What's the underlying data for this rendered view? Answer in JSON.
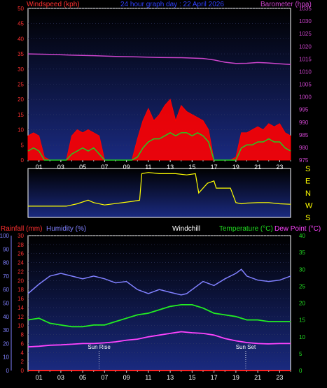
{
  "header": {
    "windspeed_label": "Windspeed (kph)",
    "title": "24 hour graph day : 22 April 2026",
    "barometer_label": "Barometer (hpa)"
  },
  "mid_header": {
    "rainfall_label": "Rainfall (mm)",
    "humidity_label": "Humidity (%)",
    "windchill_label": "Windchill",
    "temperature_label": "Temperature (°C)",
    "dewpoint_label": "Dew Point (°C)"
  },
  "colors": {
    "plot_bg_top": "#000000",
    "plot_bg_bottom": "#1a2a80",
    "wind_gust": "#ff0000",
    "wind_avg": "#22cc22",
    "barometer": "#cc44cc",
    "rain": "#ff2020",
    "humidity": "#8080ff",
    "temperature": "#22ee22",
    "dewpoint": "#ff44ff",
    "direction": "#ffff00",
    "axis_left": "#ff3030",
    "axis_right": "#cc44cc",
    "axis_hum": "#8080ff",
    "axis_temp": "#22dd22"
  },
  "chart_data": [
    {
      "type": "line",
      "name": "wind-barometer",
      "title": "24 hour graph day : 22 April 2026",
      "x_ticks": [
        "01",
        "03",
        "05",
        "07",
        "09",
        "11",
        "13",
        "15",
        "17",
        "19",
        "21",
        "23"
      ],
      "xlim": [
        0,
        24
      ],
      "ylabel_left": "Windspeed (kph)",
      "ylim_left": [
        0,
        50
      ],
      "yticks_left": [
        0,
        5,
        10,
        15,
        20,
        25,
        30,
        35,
        40,
        45,
        50
      ],
      "ylabel_right": "Barometer (hpa)",
      "ylim_right": [
        975,
        1035
      ],
      "yticks_right": [
        975,
        980,
        985,
        990,
        995,
        1000,
        1005,
        1010,
        1015,
        1020,
        1025,
        1030,
        1035
      ],
      "series": [
        {
          "key": "barometer",
          "axis": "right",
          "x": [
            0,
            2,
            4,
            6,
            8,
            10,
            12,
            14,
            16,
            17,
            18,
            19,
            20,
            21,
            22,
            23,
            24
          ],
          "y": [
            1017,
            1016.8,
            1016.5,
            1016.3,
            1016,
            1015.8,
            1015.6,
            1015.5,
            1015.2,
            1014.6,
            1013.7,
            1013.2,
            1013.3,
            1013.6,
            1013.4,
            1013.1,
            1012.8
          ]
        },
        {
          "key": "gust",
          "axis": "left",
          "x": [
            0,
            0.5,
            1,
            1.5,
            2,
            2.5,
            3,
            3.5,
            4,
            4.5,
            5,
            5.5,
            6,
            6.5,
            7,
            7.5,
            8,
            8.5,
            9,
            9.5,
            10,
            10.5,
            11,
            11.5,
            12,
            12.5,
            13,
            13.5,
            14,
            14.5,
            15,
            15.5,
            16,
            16.5,
            17,
            17.5,
            18,
            18.5,
            19,
            19.5,
            20,
            20.5,
            21,
            21.5,
            22,
            22.5,
            23,
            23.5,
            24
          ],
          "y": [
            8,
            9,
            8,
            1,
            0,
            0,
            0,
            0,
            8,
            10,
            9,
            10,
            9,
            8,
            0,
            0,
            0,
            0,
            0,
            0,
            7,
            13,
            17,
            13,
            15,
            18,
            20,
            13,
            18,
            16,
            15,
            14,
            13,
            10,
            0,
            0,
            0,
            0,
            1,
            9,
            9,
            10,
            11,
            10,
            12,
            11,
            12,
            9,
            8
          ]
        },
        {
          "key": "average",
          "axis": "left",
          "x": [
            0,
            0.5,
            1,
            1.5,
            2,
            2.5,
            3,
            3.5,
            4,
            4.5,
            5,
            5.5,
            6,
            6.5,
            7,
            7.5,
            8,
            8.5,
            9,
            9.5,
            10,
            10.5,
            11,
            11.5,
            12,
            12.5,
            13,
            13.5,
            14,
            14.5,
            15,
            15.5,
            16,
            16.5,
            17,
            17.5,
            18,
            18.5,
            19,
            19.5,
            20,
            20.5,
            21,
            21.5,
            22,
            22.5,
            23,
            23.5,
            24
          ],
          "y": [
            3,
            4,
            3,
            0,
            0,
            0,
            0,
            0,
            2,
            3,
            4,
            3,
            4,
            2,
            0,
            0,
            0,
            0,
            0,
            0,
            1,
            4,
            6,
            7,
            7,
            8,
            9,
            8,
            9,
            9,
            8,
            9,
            8,
            6,
            0,
            0,
            0,
            0,
            0,
            4,
            5,
            5,
            6,
            6,
            7,
            6,
            6,
            4,
            3
          ]
        }
      ]
    },
    {
      "type": "line",
      "name": "wind-direction",
      "y_labels": [
        "S",
        "E",
        "N",
        "W",
        "S"
      ],
      "xlim": [
        0,
        24
      ],
      "series": [
        {
          "key": "direction",
          "x": [
            0,
            3.5,
            4.5,
            5.5,
            6,
            7,
            9.5,
            10.2,
            10.4,
            11,
            12,
            13.5,
            14.5,
            15.3,
            15.6,
            16.4,
            17,
            17.2,
            18.5,
            19,
            19.5,
            20,
            21,
            22,
            23,
            24
          ],
          "y": [
            215,
            215,
            225,
            240,
            230,
            220,
            235,
            240,
            350,
            355,
            350,
            350,
            345,
            350,
            270,
            310,
            320,
            290,
            290,
            230,
            225,
            228,
            230,
            230,
            225,
            223
          ]
        }
      ]
    },
    {
      "type": "line",
      "name": "temperature-humidity-rain",
      "x_ticks": [
        "01",
        "03",
        "05",
        "07",
        "09",
        "11",
        "13",
        "15",
        "17",
        "19",
        "21",
        "23"
      ],
      "xlim": [
        0,
        24
      ],
      "ylabel_left": "Rainfall (mm)",
      "ylim_rain": [
        0,
        30
      ],
      "yticks_rain": [
        0,
        2,
        4,
        6,
        8,
        10,
        12,
        14,
        16,
        18,
        20,
        22,
        24,
        26,
        28,
        30
      ],
      "ylabel_humidity": "Humidity (%)",
      "ylim_humidity": [
        0,
        100
      ],
      "yticks_humidity": [
        0,
        10,
        20,
        30,
        40,
        50,
        60,
        70,
        80,
        90,
        100
      ],
      "ylabel_right": "Temperature (°C)",
      "ylim_temp": [
        0,
        40
      ],
      "yticks_temp": [
        0,
        5,
        10,
        15,
        20,
        25,
        30,
        35,
        40
      ],
      "annotations": [
        {
          "x": 6.5,
          "label": "Sun Rise"
        },
        {
          "x": 19.9,
          "label": "Sun Set"
        }
      ],
      "series": [
        {
          "key": "humidity",
          "axis": "humidity",
          "x": [
            0,
            1,
            2,
            3,
            4,
            5,
            6,
            7,
            8,
            9,
            10,
            11,
            12,
            13,
            14,
            14.5,
            15,
            16,
            17,
            18,
            19,
            19.5,
            20,
            21,
            22,
            23,
            24
          ],
          "y": [
            57,
            64,
            70,
            72,
            70,
            68,
            70,
            68,
            65,
            66,
            60,
            57,
            60,
            58,
            56,
            57,
            60,
            66,
            63,
            68,
            72,
            75,
            70,
            67,
            66,
            67,
            70
          ]
        },
        {
          "key": "temperature",
          "axis": "temp",
          "x": [
            0,
            1,
            2,
            3,
            4,
            5,
            6,
            7,
            8,
            9,
            10,
            11,
            12,
            13,
            14,
            15,
            16,
            17,
            18,
            19,
            20,
            21,
            22,
            23,
            24
          ],
          "y": [
            15,
            15.5,
            14,
            13.5,
            13,
            13,
            13.5,
            13.5,
            14.5,
            15.5,
            16.5,
            17,
            18,
            19,
            19.5,
            19.5,
            18.5,
            17,
            16.5,
            16,
            15,
            15,
            14.5,
            14.5,
            14.5
          ]
        },
        {
          "key": "dewpoint",
          "axis": "temp",
          "x": [
            0,
            1,
            2,
            3,
            4,
            5,
            6,
            7,
            8,
            9,
            10,
            11,
            12,
            13,
            14,
            15,
            16,
            17,
            18,
            19,
            20,
            21,
            22,
            23,
            24
          ],
          "y": [
            7,
            7.2,
            7.5,
            7.6,
            7.8,
            8,
            8,
            8.2,
            8.5,
            9,
            9.3,
            10,
            10.5,
            11,
            11.5,
            11.2,
            11,
            10.5,
            9.5,
            8.8,
            8.3,
            8,
            7.9,
            8,
            8
          ]
        },
        {
          "key": "rain",
          "axis": "rain",
          "x": [
            0,
            24
          ],
          "y": [
            0,
            0
          ]
        }
      ]
    }
  ]
}
